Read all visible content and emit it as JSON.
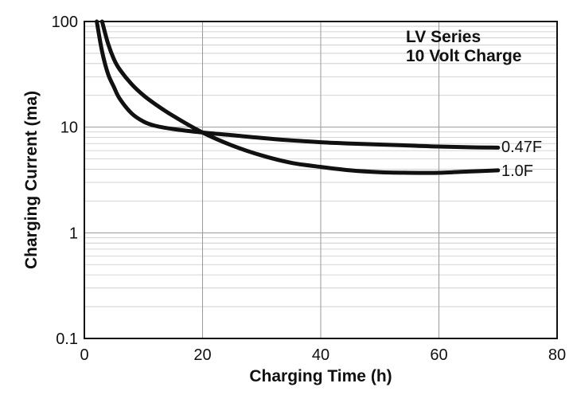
{
  "chart_data": {
    "type": "line",
    "title_lines": [
      "LV Series",
      "10 Volt Charge"
    ],
    "xlabel": "Charging Time (h)",
    "ylabel": "Charging Current (ma)",
    "xlim": [
      0,
      80
    ],
    "ylim": [
      0.1,
      100
    ],
    "yscale": "log",
    "grid": true,
    "x_ticks": [
      0,
      20,
      40,
      60,
      80
    ],
    "x_tick_labels": [
      "0",
      "20",
      "40",
      "60",
      "80"
    ],
    "y_ticks": [
      0.1,
      1,
      10,
      100
    ],
    "y_tick_labels": [
      "0.1",
      "1",
      "10",
      "100"
    ],
    "series": [
      {
        "name": "0.47F",
        "x": [
          2.1,
          3,
          4,
          5,
          6,
          8,
          10,
          12,
          15,
          20,
          25,
          30,
          35,
          40,
          45,
          50,
          55,
          60,
          65,
          70
        ],
        "y": [
          100,
          52,
          32,
          24,
          18.5,
          13.5,
          11.3,
          10.3,
          9.6,
          8.9,
          8.4,
          7.9,
          7.5,
          7.2,
          7.0,
          6.85,
          6.7,
          6.55,
          6.45,
          6.4
        ]
      },
      {
        "name": "1.0F",
        "x": [
          3,
          4,
          5,
          6,
          8,
          10,
          12,
          15,
          20,
          25,
          30,
          35,
          40,
          45,
          50,
          55,
          60,
          65,
          70
        ],
        "y": [
          100,
          62,
          44,
          35,
          25.5,
          20,
          16.5,
          12.8,
          8.9,
          6.7,
          5.4,
          4.6,
          4.2,
          3.9,
          3.75,
          3.7,
          3.7,
          3.8,
          3.9
        ]
      }
    ]
  }
}
